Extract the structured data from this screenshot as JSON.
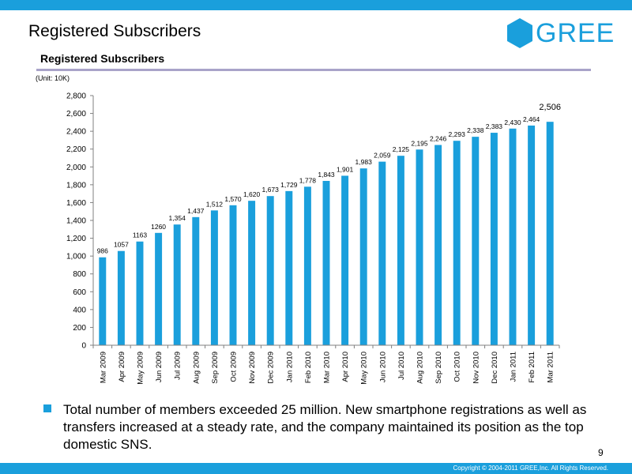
{
  "slide": {
    "title": "Registered Subscribers",
    "logo_text": "GREE",
    "page_number": "9",
    "copyright": "Copyright © 2004-2011 GREE,Inc. All Rights Reserved.",
    "bullet": "Total number of members exceeded 25 million. New smartphone registrations as well as transfers increased at a steady rate, and the company maintained its position as the top domestic SNS."
  },
  "colors": {
    "accent": "#1a9fdc",
    "rule": "#a9a3c9",
    "bar": "#1a9fdc"
  },
  "chart_data": {
    "type": "bar",
    "title": "Registered Subscribers",
    "unit_note": "(Unit: 10K)",
    "xlabel": "",
    "ylabel": "",
    "ylim": [
      0,
      2800
    ],
    "yticks": [
      0,
      200,
      400,
      600,
      800,
      1000,
      1200,
      1400,
      1600,
      1800,
      2000,
      2200,
      2400,
      2600,
      2800
    ],
    "ytick_labels": [
      "0",
      "200",
      "400",
      "600",
      "800",
      "1,000",
      "1,200",
      "1,400",
      "1,600",
      "1,800",
      "2,000",
      "2,200",
      "2,400",
      "2,600",
      "2,800"
    ],
    "grid": false,
    "categories": [
      "Mar 2009",
      "Apr 2009",
      "May 2009",
      "Jun 2009",
      "Jul 2009",
      "Aug 2009",
      "Sep 2009",
      "Oct 2009",
      "Nov 2009",
      "Dec 2009",
      "Jan 2010",
      "Feb 2010",
      "Mar 2010",
      "Apr 2010",
      "May 2010",
      "Jun 2010",
      "Jul 2010",
      "Aug 2010",
      "Sep 2010",
      "Oct 2010",
      "Nov 2010",
      "Dec 2010",
      "Jan 2011",
      "Feb 2011",
      "Mar 2011"
    ],
    "values": [
      986,
      1057,
      1163,
      1260,
      1354,
      1437,
      1512,
      1570,
      1620,
      1673,
      1729,
      1778,
      1843,
      1901,
      1983,
      2059,
      2125,
      2195,
      2246,
      2293,
      2338,
      2383,
      2430,
      2464,
      2506
    ],
    "data_labels": [
      "986",
      "1057",
      "1163",
      "1260",
      "1,354",
      "1,437",
      "1,512",
      "1,570",
      "1,620",
      "1,673",
      "1,729",
      "1,778",
      "1,843",
      "1,901",
      "1,983",
      "2,059",
      "2,125",
      "2,195",
      "2,246",
      "2,293",
      "2,338",
      "2,383",
      "2,430",
      "2,464",
      "2,506"
    ]
  }
}
